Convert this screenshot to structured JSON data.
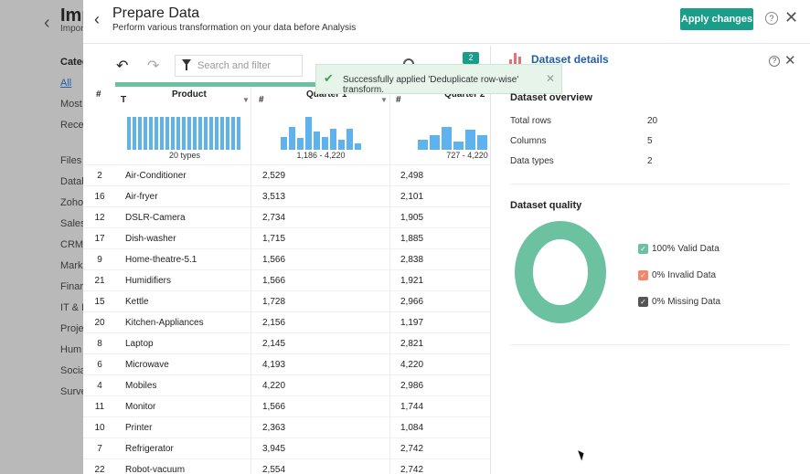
{
  "background": {
    "title": "Imp",
    "subtitle": "Impor",
    "category_title": "Categ",
    "category_items": [
      "All",
      "Most",
      "Rece",
      "Files",
      "Datab",
      "Zoho",
      "Sales",
      "CRM",
      "Mark",
      "Finar",
      "IT & I",
      "Proje",
      "Hum",
      "Socia",
      "Surve"
    ]
  },
  "header": {
    "title": "Prepare Data",
    "subtitle": "Perform various transformation on your data before Analysis",
    "apply_label": "Apply changes",
    "help": "?",
    "close": "✕"
  },
  "toolbar": {
    "search_placeholder": "Search and filter",
    "badge_count": "2"
  },
  "toast": {
    "message": "Successfully applied 'Deduplicate row-wise' transform.",
    "close": "✕"
  },
  "grid": {
    "index_header": "#",
    "columns": [
      {
        "type": "T",
        "name": "Product",
        "summary": "20 types",
        "histogram": [
          100,
          100,
          100,
          100,
          100,
          100,
          100,
          100,
          100,
          100,
          100,
          100,
          100,
          100,
          100,
          100,
          100,
          100,
          100,
          100,
          100
        ]
      },
      {
        "type": "#",
        "name": "Quarter 1",
        "summary": "1,186 - 4,220",
        "histogram": [
          40,
          70,
          35,
          100,
          55,
          40,
          65,
          30,
          65,
          20
        ]
      },
      {
        "type": "#",
        "name": "Quarter 2",
        "summary": "727 - 4,220",
        "histogram": [
          30,
          45,
          70,
          25,
          60,
          45
        ]
      }
    ],
    "rows": [
      {
        "idx": "2",
        "product": "Air-Conditioner",
        "q1": "2,529",
        "q2": "2,498"
      },
      {
        "idx": "16",
        "product": "Air-fryer",
        "q1": "3,513",
        "q2": "2,101"
      },
      {
        "idx": "12",
        "product": "DSLR-Camera",
        "q1": "2,734",
        "q2": "1,905"
      },
      {
        "idx": "17",
        "product": "Dish-washer",
        "q1": "1,715",
        "q2": "1,885"
      },
      {
        "idx": "9",
        "product": "Home-theatre-5.1",
        "q1": "1,566",
        "q2": "2,838"
      },
      {
        "idx": "21",
        "product": "Humidifiers",
        "q1": "1,566",
        "q2": "1,921"
      },
      {
        "idx": "15",
        "product": "Kettle",
        "q1": "1,728",
        "q2": "2,966"
      },
      {
        "idx": "20",
        "product": "Kitchen-Appliances",
        "q1": "2,156",
        "q2": "1,197"
      },
      {
        "idx": "8",
        "product": "Laptop",
        "q1": "2,145",
        "q2": "2,821"
      },
      {
        "idx": "6",
        "product": "Microwave",
        "q1": "4,193",
        "q2": "4,220"
      },
      {
        "idx": "4",
        "product": "Mobiles",
        "q1": "4,220",
        "q2": "2,986"
      },
      {
        "idx": "11",
        "product": "Monitor",
        "q1": "1,566",
        "q2": "1,744"
      },
      {
        "idx": "10",
        "product": "Printer",
        "q1": "2,363",
        "q2": "1,084"
      },
      {
        "idx": "7",
        "product": "Refrigerator",
        "q1": "3,945",
        "q2": "2,742"
      },
      {
        "idx": "22",
        "product": "Robot-vacuum",
        "q1": "2,554",
        "q2": "2,742"
      }
    ]
  },
  "details": {
    "title": "Dataset details",
    "overview_title": "Dataset overview",
    "overview": [
      {
        "label": "Total rows",
        "value": "20"
      },
      {
        "label": "Columns",
        "value": "5"
      },
      {
        "label": "Data types",
        "value": "2"
      }
    ],
    "quality_title": "Dataset quality",
    "quality": [
      {
        "label": "100% Valid Data",
        "color": "#6cc1a0",
        "percent": 100
      },
      {
        "label": "0% Invalid Data",
        "color": "#f0896b",
        "percent": 0
      },
      {
        "label": "0% Missing Data",
        "color": "#555555",
        "percent": 0
      }
    ]
  }
}
